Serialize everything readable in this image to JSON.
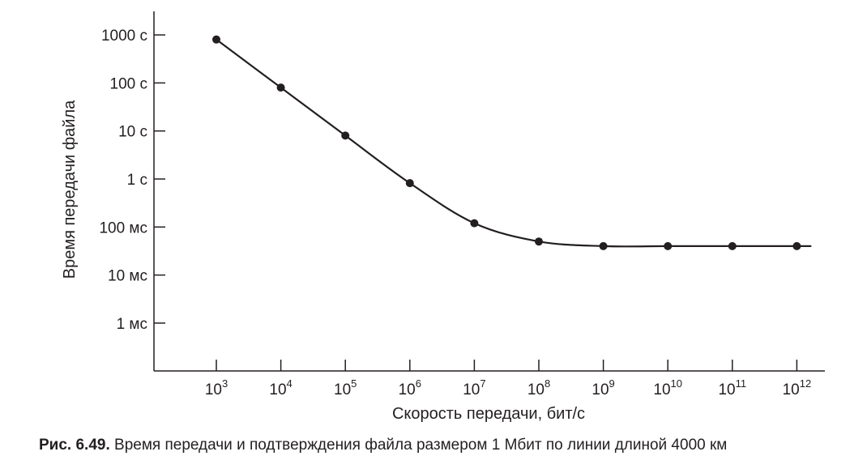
{
  "chart_data": {
    "type": "line",
    "title": "",
    "xlabel": "Скорость передачи, бит/с",
    "ylabel": "Время передачи файла",
    "x_scale": "log",
    "y_scale": "log",
    "x_ticks": [
      {
        "base": "10",
        "exp": "3"
      },
      {
        "base": "10",
        "exp": "4"
      },
      {
        "base": "10",
        "exp": "5"
      },
      {
        "base": "10",
        "exp": "6"
      },
      {
        "base": "10",
        "exp": "7"
      },
      {
        "base": "10",
        "exp": "8"
      },
      {
        "base": "10",
        "exp": "9"
      },
      {
        "base": "10",
        "exp": "10"
      },
      {
        "base": "10",
        "exp": "11"
      },
      {
        "base": "10",
        "exp": "12"
      }
    ],
    "y_ticks": [
      "1000 с",
      "100 с",
      "10 с",
      "1 с",
      "100 мс",
      "10 мс",
      "1 мс"
    ],
    "series": [
      {
        "x": [
          1000,
          10000,
          100000,
          1000000,
          10000000,
          100000000,
          1000000000,
          10000000000,
          100000000000,
          1000000000000
        ],
        "y_seconds": [
          800,
          80,
          8.0,
          0.82,
          0.12,
          0.05,
          0.04,
          0.04,
          0.04,
          0.04
        ]
      }
    ],
    "grid": false,
    "legend": "none"
  },
  "caption": {
    "number": "Рис. 6.49.",
    "text": "Время передачи и подтверждения файла размером 1 Мбит по линии длиной 4000 км"
  }
}
